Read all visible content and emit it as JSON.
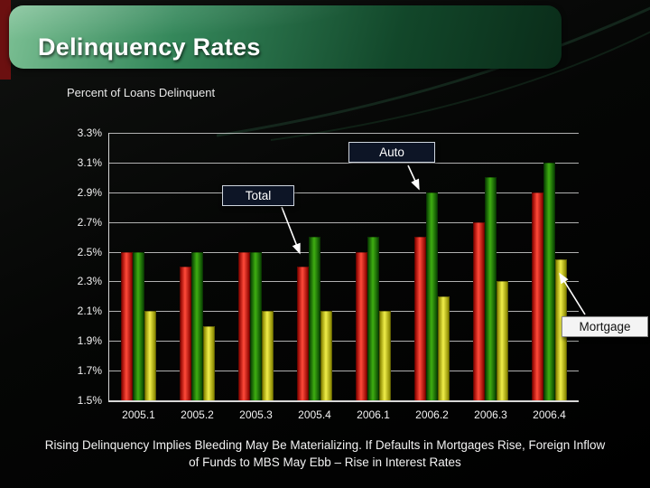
{
  "slide": {
    "title": "Delinquency Rates",
    "subtitle": "Percent of Loans Delinquent",
    "caption": "Rising Delinquency Implies Bleeding May Be Materializing.  If Defaults in Mortgages Rise, Foreign Inflow of Funds to MBS May Ebb – Rise in Interest Rates"
  },
  "annotations": [
    {
      "label": "Auto"
    },
    {
      "label": "Total"
    },
    {
      "label": "Mortgage"
    }
  ],
  "chart_data": {
    "type": "bar",
    "title": "Percent of Loans Delinquent",
    "xlabel": "",
    "ylabel": "Percent of Loans Delinquent",
    "ylim": [
      1.5,
      3.3
    ],
    "ytick_step": 0.2,
    "grid": true,
    "legend_position": "callout-labels",
    "categories": [
      "2005.1",
      "2005.2",
      "2005.3",
      "2005.4",
      "2006.1",
      "2006.2",
      "2006.3",
      "2006.4"
    ],
    "series": [
      {
        "name": "Total",
        "color": "#d41414",
        "color_light": "#ff4a3a",
        "color_dark": "#8f0500",
        "values": [
          2.5,
          2.4,
          2.5,
          2.4,
          2.5,
          2.6,
          2.7,
          2.9
        ]
      },
      {
        "name": "Auto",
        "color": "#1d7a0a",
        "color_light": "#3fae12",
        "color_dark": "#0c4a02",
        "values": [
          2.5,
          2.5,
          2.5,
          2.6,
          2.6,
          2.9,
          3.0,
          3.1
        ]
      },
      {
        "name": "Mortgage",
        "color": "#c6c400",
        "color_light": "#f0ee4a",
        "color_dark": "#8a8800",
        "values": [
          2.1,
          2.0,
          2.1,
          2.1,
          2.1,
          2.2,
          2.3,
          2.45
        ]
      }
    ]
  }
}
